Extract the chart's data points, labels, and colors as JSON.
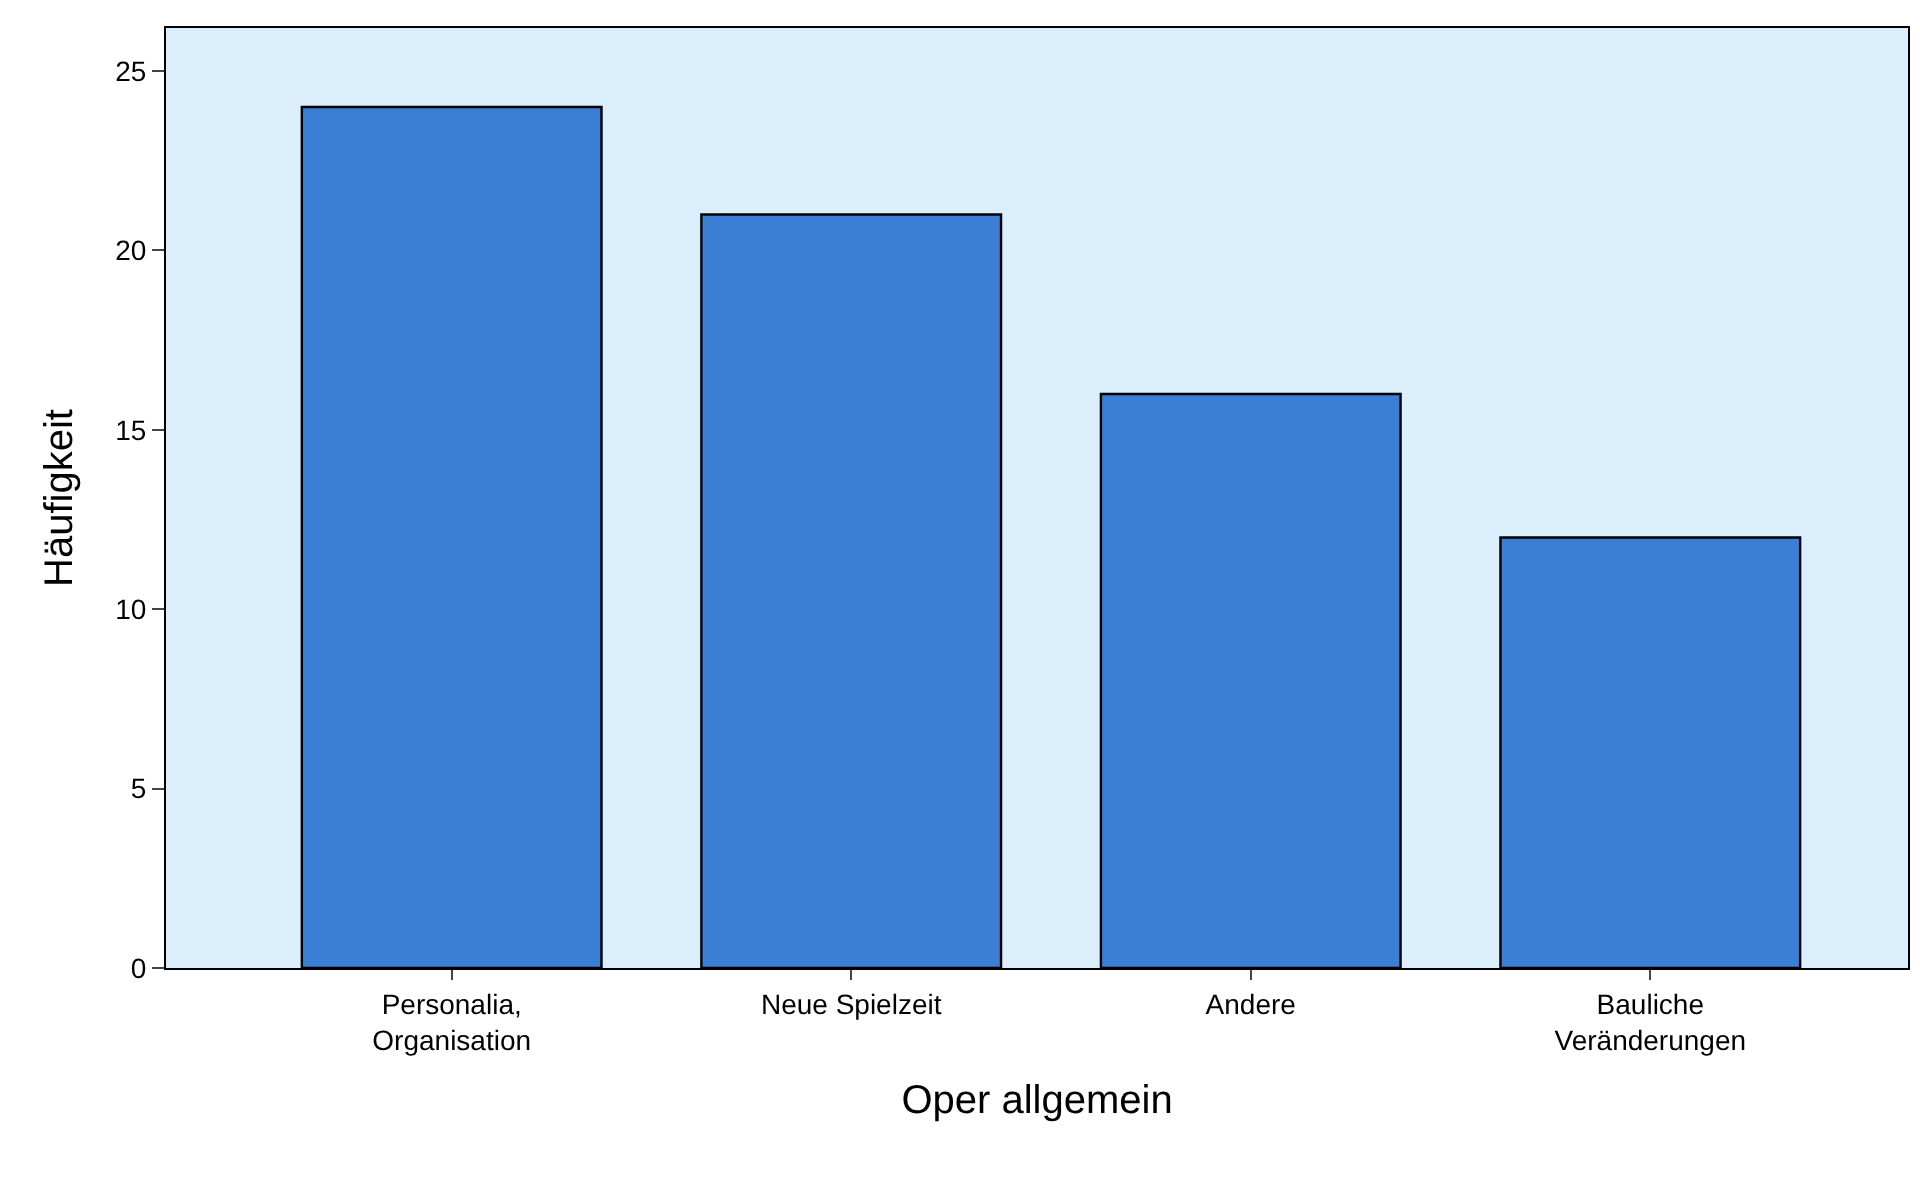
{
  "chart_data": {
    "type": "bar",
    "xlabel": "Oper allgemein",
    "ylabel": "Häufigkeit",
    "categories": [
      "Personalia,\nOrganisation",
      "Neue Spielzeit",
      "Andere",
      "Bauliche\nVeränderungen"
    ],
    "values": [
      24,
      21,
      16,
      12
    ],
    "color": "#3a7fd5",
    "ylim": [
      0,
      26.2
    ],
    "yticks": [
      0,
      5,
      10,
      15,
      20,
      25
    ],
    "grid": false,
    "legend": false
  }
}
